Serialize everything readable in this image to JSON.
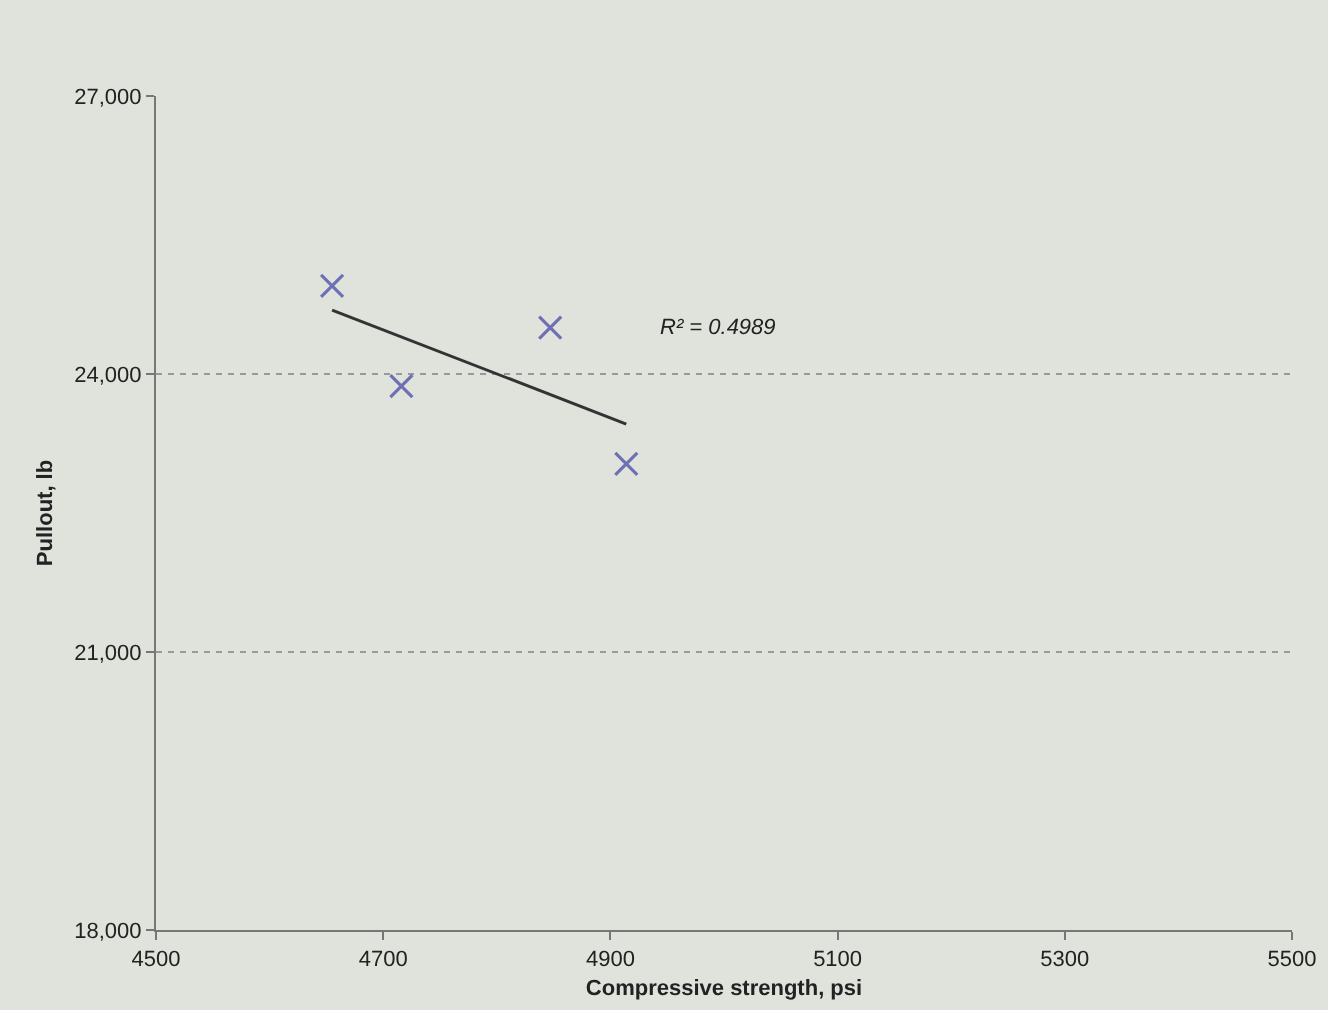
{
  "chart_data": {
    "type": "scatter",
    "xlabel": "Compressive strength, psi",
    "ylabel": "Pullout, lb",
    "xlim": [
      4500,
      5500
    ],
    "xticks": [
      4500,
      4700,
      4900,
      5100,
      5300,
      5500
    ],
    "ylim": [
      18000,
      27000
    ],
    "yticks": [
      {
        "value": 18000,
        "label": "18,000"
      },
      {
        "value": 21000,
        "label": "21,000"
      },
      {
        "value": 24000,
        "label": "24,000"
      },
      {
        "value": 27000,
        "label": "27,000"
      }
    ],
    "grid": "y",
    "marker": "cross",
    "series": [
      {
        "color": "#6f70b4",
        "x": [
          4655,
          4716,
          4847,
          4914
        ],
        "values": [
          24950,
          23870,
          24500,
          23030
        ]
      },
      {
        "type": "line",
        "color": "#333333",
        "marker": "none",
        "line_style": "solid",
        "x": [
          4655,
          4914
        ],
        "values": [
          24690,
          23460
        ]
      }
    ],
    "annotations": [
      "R² = 0.4989"
    ]
  }
}
